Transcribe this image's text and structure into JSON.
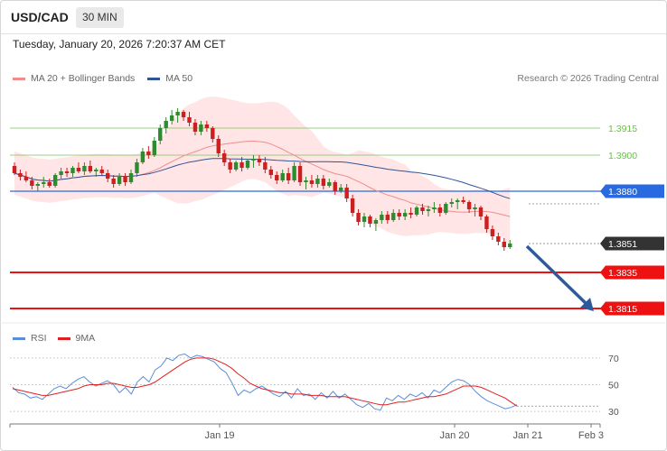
{
  "header": {
    "symbol": "USD/CAD",
    "timeframe": "30 MIN",
    "datetime": "Tuesday, January 20, 2026 7:20:37 AM CET",
    "credit": "Research © 2026 Trading Central"
  },
  "legend_main": [
    {
      "label": "MA 20 + Bollinger Bands",
      "color": "#f08c8c"
    },
    {
      "label": "MA 50",
      "color": "#2f5597"
    }
  ],
  "legend_rsi": [
    {
      "label": "RSI",
      "color": "#5b8ed8"
    },
    {
      "label": "9MA",
      "color": "#e02020"
    }
  ],
  "colors": {
    "bull": "#2e8b2e",
    "bear": "#cc1f1f",
    "green_level": "#6cbf4a",
    "blue_level": "#2a6ae0",
    "red_level": "#ee1111",
    "current": "#333333",
    "arrow": "#2f5a9a",
    "band": "#ffdcdc"
  },
  "chart_data": [
    {
      "type": "candlestick",
      "title": "USD/CAD 30 MIN",
      "x_ticks": [
        "Jan 19",
        "Jan 20",
        "Jan 21",
        "Feb 3"
      ],
      "ylim": [
        1.381,
        1.3935
      ],
      "levels": [
        {
          "label": "1.3915",
          "value": 1.3915,
          "style": "green"
        },
        {
          "label": "1.3900",
          "value": 1.39,
          "style": "green"
        },
        {
          "label": "1.3880",
          "value": 1.388,
          "style": "blue"
        },
        {
          "label": "1.3851",
          "value": 1.3851,
          "style": "current"
        },
        {
          "label": "1.3835",
          "value": 1.3835,
          "style": "red"
        },
        {
          "label": "1.3815",
          "value": 1.3815,
          "style": "red"
        }
      ],
      "candles": [
        [
          1.3894,
          1.3896,
          1.3889,
          1.389
        ],
        [
          1.389,
          1.3892,
          1.3886,
          1.3888
        ],
        [
          1.3888,
          1.3891,
          1.3885,
          1.3886
        ],
        [
          1.3886,
          1.3888,
          1.3881,
          1.3883
        ],
        [
          1.3883,
          1.3885,
          1.388,
          1.3884
        ],
        [
          1.3884,
          1.3888,
          1.3882,
          1.3885
        ],
        [
          1.3885,
          1.3887,
          1.3882,
          1.3883
        ],
        [
          1.3883,
          1.389,
          1.3882,
          1.3889
        ],
        [
          1.3889,
          1.3893,
          1.3887,
          1.3891
        ],
        [
          1.3891,
          1.3893,
          1.3888,
          1.389
        ],
        [
          1.389,
          1.3894,
          1.3888,
          1.3893
        ],
        [
          1.3893,
          1.3896,
          1.389,
          1.3891
        ],
        [
          1.3891,
          1.3896,
          1.3889,
          1.3894
        ],
        [
          1.3894,
          1.3897,
          1.389,
          1.3891
        ],
        [
          1.3891,
          1.3893,
          1.3888,
          1.3892
        ],
        [
          1.3892,
          1.3894,
          1.3889,
          1.389
        ],
        [
          1.389,
          1.3892,
          1.3885,
          1.3887
        ],
        [
          1.3887,
          1.3889,
          1.3882,
          1.3884
        ],
        [
          1.3884,
          1.389,
          1.3883,
          1.3888
        ],
        [
          1.3888,
          1.389,
          1.3883,
          1.3885
        ],
        [
          1.3885,
          1.3892,
          1.3884,
          1.389
        ],
        [
          1.389,
          1.3898,
          1.3888,
          1.3896
        ],
        [
          1.3896,
          1.3904,
          1.3895,
          1.3902
        ],
        [
          1.3902,
          1.3905,
          1.3898,
          1.39
        ],
        [
          1.39,
          1.391,
          1.3899,
          1.3908
        ],
        [
          1.3908,
          1.3917,
          1.3906,
          1.3915
        ],
        [
          1.3915,
          1.3921,
          1.3912,
          1.3919
        ],
        [
          1.3919,
          1.3925,
          1.3917,
          1.3922
        ],
        [
          1.3922,
          1.3926,
          1.3918,
          1.3924
        ],
        [
          1.3924,
          1.3925,
          1.3919,
          1.3921
        ],
        [
          1.3921,
          1.3924,
          1.3916,
          1.3918
        ],
        [
          1.3918,
          1.392,
          1.3911,
          1.3913
        ],
        [
          1.3913,
          1.3919,
          1.3911,
          1.3917
        ],
        [
          1.3917,
          1.3919,
          1.3913,
          1.3915
        ],
        [
          1.3915,
          1.3916,
          1.3907,
          1.3909
        ],
        [
          1.3909,
          1.3911,
          1.3899,
          1.3901
        ],
        [
          1.3901,
          1.3903,
          1.3894,
          1.3896
        ],
        [
          1.3896,
          1.3898,
          1.389,
          1.3892
        ],
        [
          1.3892,
          1.3897,
          1.3891,
          1.3896
        ],
        [
          1.3896,
          1.3899,
          1.3891,
          1.3893
        ],
        [
          1.3893,
          1.3898,
          1.3892,
          1.3897
        ],
        [
          1.3897,
          1.39,
          1.3893,
          1.3898
        ],
        [
          1.3898,
          1.39,
          1.3894,
          1.3896
        ],
        [
          1.3896,
          1.3899,
          1.389,
          1.3892
        ],
        [
          1.3892,
          1.3894,
          1.3887,
          1.3889
        ],
        [
          1.3889,
          1.3891,
          1.3884,
          1.3886
        ],
        [
          1.3886,
          1.3892,
          1.3885,
          1.389
        ],
        [
          1.389,
          1.3893,
          1.3884,
          1.3886
        ],
        [
          1.3886,
          1.3896,
          1.3885,
          1.3894
        ],
        [
          1.3894,
          1.3896,
          1.3883,
          1.3885
        ],
        [
          1.3885,
          1.3888,
          1.3881,
          1.3886
        ],
        [
          1.3886,
          1.3889,
          1.3882,
          1.3884
        ],
        [
          1.3884,
          1.3889,
          1.3882,
          1.3887
        ],
        [
          1.3887,
          1.3889,
          1.3881,
          1.3883
        ],
        [
          1.3883,
          1.3887,
          1.3882,
          1.3885
        ],
        [
          1.3885,
          1.3886,
          1.3878,
          1.388
        ],
        [
          1.388,
          1.3884,
          1.3879,
          1.3882
        ],
        [
          1.3882,
          1.3884,
          1.3874,
          1.3876
        ],
        [
          1.3876,
          1.3878,
          1.3866,
          1.3868
        ],
        [
          1.3868,
          1.387,
          1.3861,
          1.3863
        ],
        [
          1.3863,
          1.3868,
          1.386,
          1.3866
        ],
        [
          1.3866,
          1.3867,
          1.386,
          1.3862
        ],
        [
          1.3862,
          1.3865,
          1.3858,
          1.3864
        ],
        [
          1.3864,
          1.3869,
          1.3862,
          1.3867
        ],
        [
          1.3867,
          1.3869,
          1.3862,
          1.3864
        ],
        [
          1.3864,
          1.387,
          1.3863,
          1.3868
        ],
        [
          1.3868,
          1.387,
          1.3864,
          1.3866
        ],
        [
          1.3866,
          1.387,
          1.3864,
          1.3868
        ],
        [
          1.3868,
          1.3871,
          1.3865,
          1.3867
        ],
        [
          1.3867,
          1.3872,
          1.3866,
          1.3871
        ],
        [
          1.3871,
          1.3873,
          1.3867,
          1.3869
        ],
        [
          1.3869,
          1.3872,
          1.3866,
          1.387
        ],
        [
          1.387,
          1.3874,
          1.3868,
          1.3871
        ],
        [
          1.3871,
          1.3873,
          1.3866,
          1.3868
        ],
        [
          1.3868,
          1.3874,
          1.3867,
          1.3873
        ],
        [
          1.3873,
          1.3876,
          1.3871,
          1.3874
        ],
        [
          1.3874,
          1.3876,
          1.387,
          1.3875
        ],
        [
          1.3875,
          1.3877,
          1.3873,
          1.3874
        ],
        [
          1.3874,
          1.3875,
          1.3868,
          1.387
        ],
        [
          1.387,
          1.3873,
          1.3866,
          1.3871
        ],
        [
          1.3871,
          1.3872,
          1.3864,
          1.3866
        ],
        [
          1.3866,
          1.3867,
          1.3857,
          1.3859
        ],
        [
          1.3859,
          1.3861,
          1.3853,
          1.3855
        ],
        [
          1.3855,
          1.3857,
          1.385,
          1.3852
        ],
        [
          1.3852,
          1.3854,
          1.3847,
          1.3849
        ],
        [
          1.3849,
          1.3853,
          1.3848,
          1.3851
        ]
      ]
    },
    {
      "type": "line",
      "title": "RSI",
      "y_ticks": [
        70,
        50,
        30
      ],
      "ylim": [
        22,
        78
      ],
      "series": [
        {
          "name": "RSI",
          "values": [
            48,
            44,
            43,
            40,
            41,
            39,
            43,
            47,
            49,
            47,
            51,
            54,
            56,
            52,
            49,
            51,
            53,
            50,
            44,
            48,
            43,
            52,
            56,
            52,
            61,
            64,
            70,
            68,
            72,
            73,
            70,
            72,
            71,
            69,
            67,
            62,
            59,
            51,
            42,
            46,
            44,
            47,
            49,
            46,
            43,
            41,
            45,
            40,
            47,
            42,
            43,
            39,
            44,
            40,
            45,
            40,
            43,
            39,
            35,
            33,
            36,
            32,
            31,
            40,
            38,
            42,
            39,
            43,
            41,
            44,
            40,
            46,
            44,
            48,
            52,
            54,
            53,
            50,
            45,
            41,
            38,
            36,
            34,
            32,
            33,
            35
          ]
        },
        {
          "name": "9MA",
          "values": [
            47,
            46,
            45,
            44,
            43,
            42,
            42,
            43,
            44,
            45,
            46,
            47,
            49,
            50,
            50,
            50,
            51,
            51,
            50,
            49,
            48,
            48,
            49,
            50,
            52,
            55,
            58,
            61,
            64,
            67,
            69,
            70,
            70,
            70,
            69,
            67,
            65,
            62,
            58,
            55,
            51,
            49,
            47,
            46,
            45,
            44,
            44,
            43,
            43,
            43,
            42,
            42,
            42,
            41,
            41,
            41,
            41,
            40,
            39,
            38,
            37,
            36,
            35,
            35,
            36,
            37,
            37,
            38,
            39,
            40,
            41,
            41,
            42,
            43,
            45,
            47,
            49,
            49,
            49,
            48,
            46,
            44,
            42,
            40,
            37,
            34
          ]
        }
      ]
    }
  ]
}
